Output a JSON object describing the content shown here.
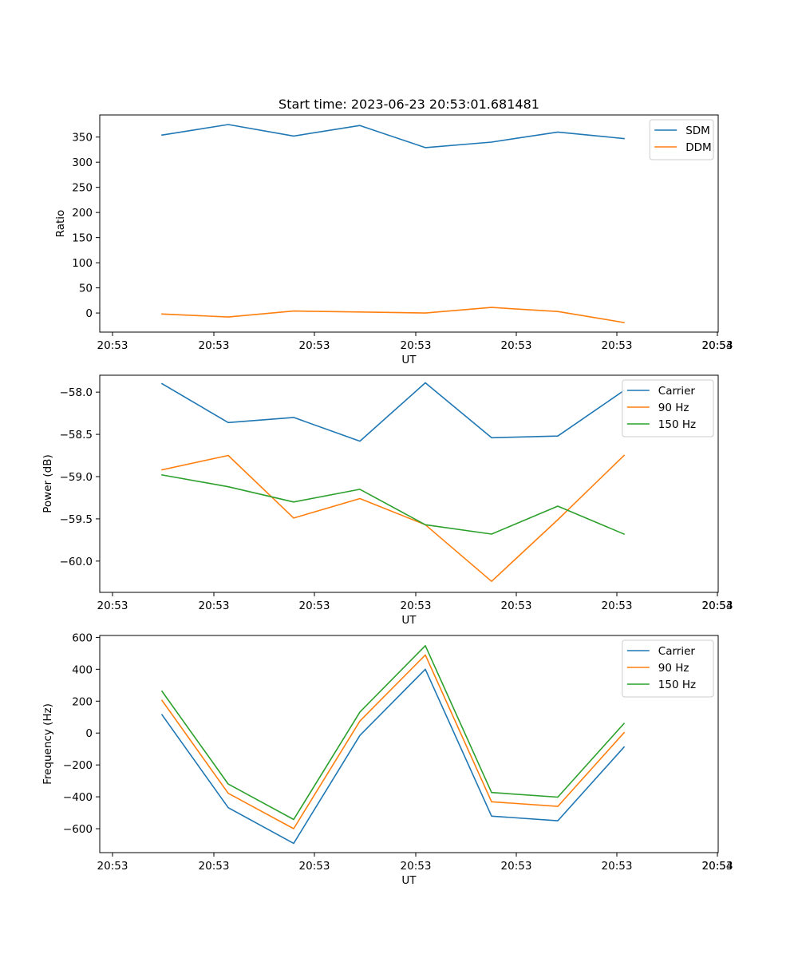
{
  "chart_data": [
    {
      "type": "line",
      "title": "Start time: 2023-06-23 20:53:01.681481",
      "xlabel": "UT",
      "ylabel": "Ratio",
      "xticks": [
        "20:53",
        "20:53",
        "20:53",
        "20:53",
        "20:53",
        "20:53",
        "20:53",
        "20:54"
      ],
      "yticks": [
        0,
        50,
        100,
        150,
        200,
        250,
        300,
        350
      ],
      "ylim": [
        -38,
        394
      ],
      "legend": "top-right",
      "series": [
        {
          "name": "SDM",
          "color": "#1f77b4",
          "values": [
            354,
            375,
            352,
            373,
            329,
            340,
            360,
            347
          ]
        },
        {
          "name": "DDM",
          "color": "#ff7f0e",
          "values": [
            -2,
            -8,
            4,
            2,
            0,
            11,
            3,
            -19
          ]
        }
      ]
    },
    {
      "type": "line",
      "title": "",
      "xlabel": "UT",
      "ylabel": "Power (dB)",
      "xticks": [
        "20:53",
        "20:53",
        "20:53",
        "20:53",
        "20:53",
        "20:53",
        "20:53",
        "20:54"
      ],
      "yticks": [
        "−60.0",
        "−59.5",
        "−59.0",
        "−58.5",
        "−58.0"
      ],
      "ytick_values": [
        -60.0,
        -59.5,
        -59.0,
        -58.5,
        -58.0
      ],
      "ylim": [
        -60.37,
        -57.8
      ],
      "legend": "top-right",
      "series": [
        {
          "name": "Carrier",
          "color": "#1f77b4",
          "values": [
            -57.9,
            -58.36,
            -58.3,
            -58.58,
            -57.89,
            -58.54,
            -58.52,
            -57.98
          ]
        },
        {
          "name": "90 Hz",
          "color": "#ff7f0e",
          "values": [
            -58.92,
            -58.75,
            -59.49,
            -59.26,
            -59.57,
            -60.24,
            -59.51,
            -58.75
          ]
        },
        {
          "name": "150 Hz",
          "color": "#2ca02c",
          "values": [
            -58.98,
            -59.12,
            -59.3,
            -59.15,
            -59.57,
            -59.68,
            -59.35,
            -59.68
          ]
        }
      ]
    },
    {
      "type": "line",
      "title": "",
      "xlabel": "UT",
      "ylabel": "Frequency (Hz)",
      "xticks": [
        "20:53",
        "20:53",
        "20:53",
        "20:53",
        "20:53",
        "20:53",
        "20:53",
        "20:54"
      ],
      "yticks": [
        "−600",
        "−400",
        "−200",
        "0",
        "200",
        "400",
        "600"
      ],
      "ytick_values": [
        -600,
        -400,
        -200,
        0,
        200,
        400,
        600
      ],
      "ylim": [
        -750,
        612
      ],
      "legend": "top-right",
      "series": [
        {
          "name": "Carrier",
          "color": "#1f77b4",
          "values": [
            115,
            -468,
            -692,
            -15,
            400,
            -521,
            -550,
            -88
          ]
        },
        {
          "name": "90 Hz",
          "color": "#ff7f0e",
          "values": [
            205,
            -378,
            -600,
            75,
            490,
            -431,
            -460,
            2
          ]
        },
        {
          "name": "150 Hz",
          "color": "#2ca02c",
          "values": [
            262,
            -320,
            -542,
            132,
            548,
            -373,
            -402,
            60
          ]
        }
      ]
    }
  ]
}
